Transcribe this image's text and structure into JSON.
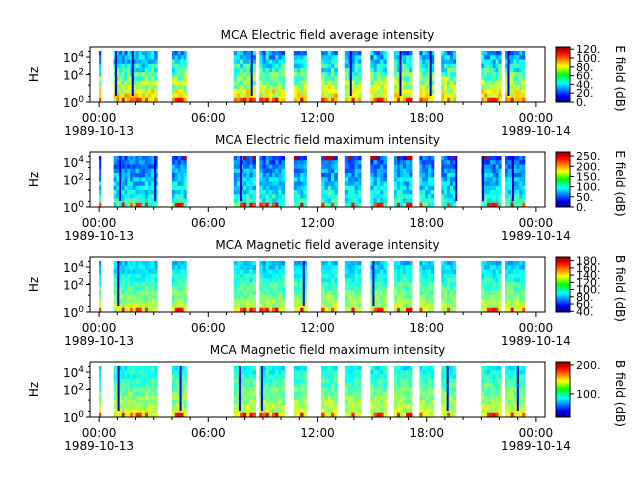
{
  "chart_data": [
    {
      "type": "heatmap",
      "title": "MCA  Electric field average intensity",
      "ylabel": "Hz",
      "colorbar_label": "E field (dB)",
      "colorbar_ticks": [
        "0.",
        "20.",
        "40.",
        "60.",
        "80.",
        "100.",
        "120."
      ],
      "colorbar_range": [
        0,
        125
      ],
      "y_tick_labels": [
        "10^0",
        "10^2",
        "10^4"
      ],
      "x_tick_labels": [
        {
          "time": "00:00",
          "date": "1989-10-13"
        },
        {
          "time": "06:00",
          "date": ""
        },
        {
          "time": "12:00",
          "date": ""
        },
        {
          "time": "18:00",
          "date": ""
        },
        {
          "time": "00:00",
          "date": "1989-10-14"
        }
      ],
      "time_range_hours": [
        -0.5,
        24.5
      ],
      "data_segments_hours": [
        [
          0.0,
          0.1
        ],
        [
          0.8,
          1.4
        ],
        [
          1.4,
          2.0
        ],
        [
          2.0,
          3.2
        ],
        [
          4.0,
          4.8
        ],
        [
          7.4,
          8.6
        ],
        [
          8.8,
          10.2
        ],
        [
          10.7,
          11.4
        ],
        [
          12.2,
          13.1
        ],
        [
          13.5,
          14.4
        ],
        [
          14.9,
          15.8
        ],
        [
          16.2,
          17.2
        ],
        [
          17.6,
          18.4
        ],
        [
          18.8,
          19.6
        ],
        [
          21.0,
          22.1
        ],
        [
          22.3,
          23.4
        ]
      ],
      "palette": "jet"
    },
    {
      "type": "heatmap",
      "title": "MCA  Electric field maximum intensity",
      "ylabel": "Hz",
      "colorbar_label": "E field (dB)",
      "colorbar_ticks": [
        "0.",
        "50.",
        "100.",
        "150.",
        "200.",
        "250."
      ],
      "colorbar_range": [
        0,
        270
      ],
      "y_tick_labels": [
        "10^0",
        "10^2",
        "10^4"
      ],
      "x_tick_labels": [
        {
          "time": "00:00",
          "date": "1989-10-13"
        },
        {
          "time": "06:00",
          "date": ""
        },
        {
          "time": "12:00",
          "date": ""
        },
        {
          "time": "18:00",
          "date": ""
        },
        {
          "time": "00:00",
          "date": "1989-10-14"
        }
      ],
      "time_range_hours": [
        -0.5,
        24.5
      ],
      "data_segments_hours": [
        [
          0.0,
          0.1
        ],
        [
          0.8,
          1.4
        ],
        [
          1.4,
          2.0
        ],
        [
          2.0,
          3.2
        ],
        [
          4.0,
          4.8
        ],
        [
          7.4,
          8.6
        ],
        [
          8.8,
          10.2
        ],
        [
          10.7,
          11.4
        ],
        [
          12.2,
          13.1
        ],
        [
          13.5,
          14.4
        ],
        [
          14.9,
          15.8
        ],
        [
          16.2,
          17.2
        ],
        [
          17.6,
          18.4
        ],
        [
          18.8,
          19.6
        ],
        [
          21.0,
          22.1
        ],
        [
          22.3,
          23.4
        ]
      ],
      "palette": "jet"
    },
    {
      "type": "heatmap",
      "title": "MCA  Magnetic field average intensity",
      "ylabel": "Hz",
      "colorbar_label": "B field (dB)",
      "colorbar_ticks": [
        "40.",
        "60.",
        "80.",
        "100.",
        "120.",
        "140.",
        "160.",
        "180."
      ],
      "colorbar_range": [
        38,
        190
      ],
      "y_tick_labels": [
        "10^0",
        "10^2",
        "10^4"
      ],
      "x_tick_labels": [
        {
          "time": "00:00",
          "date": "1989-10-13"
        },
        {
          "time": "06:00",
          "date": ""
        },
        {
          "time": "12:00",
          "date": ""
        },
        {
          "time": "18:00",
          "date": ""
        },
        {
          "time": "00:00",
          "date": "1989-10-14"
        }
      ],
      "time_range_hours": [
        -0.5,
        24.5
      ],
      "data_segments_hours": [
        [
          0.0,
          0.1
        ],
        [
          0.8,
          1.4
        ],
        [
          1.4,
          2.0
        ],
        [
          2.0,
          3.2
        ],
        [
          4.0,
          4.8
        ],
        [
          7.4,
          8.6
        ],
        [
          8.8,
          10.2
        ],
        [
          10.7,
          11.4
        ],
        [
          12.2,
          13.1
        ],
        [
          13.5,
          14.4
        ],
        [
          14.9,
          15.8
        ],
        [
          16.2,
          17.2
        ],
        [
          17.6,
          18.4
        ],
        [
          18.8,
          19.6
        ],
        [
          21.0,
          22.1
        ],
        [
          22.3,
          23.4
        ]
      ],
      "palette": "jet"
    },
    {
      "type": "heatmap",
      "title": "MCA  Magnetic field maximum intensity",
      "ylabel": "Hz",
      "colorbar_label": "B field (dB)",
      "colorbar_ticks": [
        "100.",
        "200."
      ],
      "colorbar_range": [
        20,
        210
      ],
      "y_tick_labels": [
        "10^0",
        "10^2",
        "10^4"
      ],
      "x_tick_labels": [
        {
          "time": "00:00",
          "date": "1989-10-13"
        },
        {
          "time": "06:00",
          "date": ""
        },
        {
          "time": "12:00",
          "date": ""
        },
        {
          "time": "18:00",
          "date": ""
        },
        {
          "time": "00:00",
          "date": "1989-10-14"
        }
      ],
      "time_range_hours": [
        -0.5,
        24.5
      ],
      "data_segments_hours": [
        [
          0.0,
          0.1
        ],
        [
          0.8,
          1.4
        ],
        [
          1.4,
          2.0
        ],
        [
          2.0,
          3.2
        ],
        [
          4.0,
          4.8
        ],
        [
          7.4,
          8.6
        ],
        [
          8.8,
          10.2
        ],
        [
          10.7,
          11.4
        ],
        [
          12.2,
          13.1
        ],
        [
          13.5,
          14.4
        ],
        [
          14.9,
          15.8
        ],
        [
          16.2,
          17.2
        ],
        [
          17.6,
          18.4
        ],
        [
          18.8,
          19.6
        ],
        [
          21.0,
          22.1
        ],
        [
          22.3,
          23.4
        ]
      ],
      "palette": "jet"
    }
  ]
}
